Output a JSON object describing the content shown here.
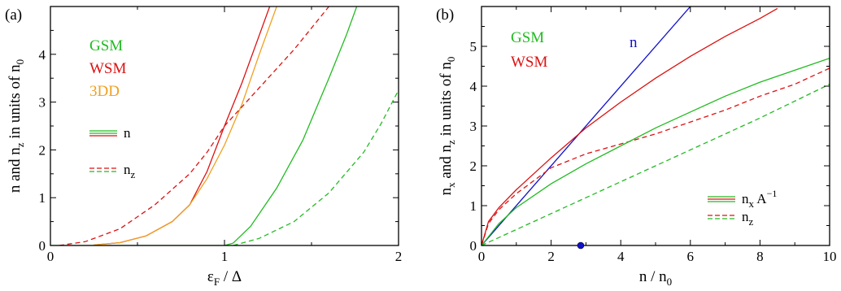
{
  "colors": {
    "green": "#22bb22",
    "red": "#dd1111",
    "orange": "#f0a020",
    "blue": "#1010cc"
  },
  "chart_data": [
    {
      "type": "line",
      "panel_label": "(a)",
      "xlabel_main": "ε",
      "xlabel_sub": "F",
      "xlabel_tail": " / Δ",
      "ylabel_main": "n and n",
      "ylabel_sub": "z",
      "ylabel_mid": " in units of n",
      "ylabel_sub2": "0",
      "xlim": [
        0,
        2
      ],
      "ylim": [
        0,
        5
      ],
      "xticks": [
        {
          "value": 0,
          "label": "0"
        },
        {
          "value": 1,
          "label": "1"
        },
        {
          "value": 2,
          "label": "2"
        }
      ],
      "yticks": [
        {
          "value": 0,
          "label": "0"
        },
        {
          "value": 1,
          "label": "1"
        },
        {
          "value": 2,
          "label": "2"
        },
        {
          "value": 3,
          "label": "3"
        },
        {
          "value": 4,
          "label": "4"
        }
      ],
      "legend_names": [
        {
          "text": "GSM",
          "color": "#22bb22"
        },
        {
          "text": "WSM",
          "color": "#dd1111"
        },
        {
          "text": "3DD",
          "color": "#f0a020"
        }
      ],
      "legend_keys": [
        {
          "text": "n",
          "sub": "",
          "style": "solid"
        },
        {
          "text": "n",
          "sub": "z",
          "style": "dashed"
        }
      ],
      "series": [
        {
          "color": "#dd1111",
          "dash": "none",
          "x": [
            0.25,
            0.4,
            0.55,
            0.7,
            0.8,
            0.9,
            1.0,
            1.1,
            1.2,
            1.26
          ],
          "y": [
            0.01,
            0.06,
            0.2,
            0.5,
            0.85,
            1.55,
            2.5,
            3.4,
            4.4,
            5.0
          ]
        },
        {
          "color": "#f0a020",
          "dash": "none",
          "x": [
            0.25,
            0.4,
            0.55,
            0.7,
            0.8,
            0.9,
            1.0,
            1.1,
            1.2,
            1.3
          ],
          "y": [
            0.01,
            0.06,
            0.2,
            0.5,
            0.85,
            1.4,
            2.1,
            2.95,
            4.0,
            5.0
          ]
        },
        {
          "color": "#dd1111",
          "dash": "6,4",
          "x": [
            0.05,
            0.2,
            0.4,
            0.6,
            0.8,
            0.9,
            1.0,
            1.2,
            1.4,
            1.6
          ],
          "y": [
            0.0,
            0.08,
            0.35,
            0.85,
            1.5,
            1.95,
            2.5,
            3.3,
            4.1,
            5.0
          ]
        },
        {
          "color": "#22bb22",
          "dash": "none",
          "x": [
            0.0,
            1.0,
            1.05,
            1.15,
            1.3,
            1.45,
            1.6,
            1.7,
            1.76
          ],
          "y": [
            0.0,
            0.0,
            0.05,
            0.4,
            1.2,
            2.2,
            3.5,
            4.4,
            5.0
          ]
        },
        {
          "color": "#22bb22",
          "dash": "6,4",
          "x": [
            1.05,
            1.2,
            1.4,
            1.6,
            1.8,
            1.9,
            2.0
          ],
          "y": [
            0.0,
            0.15,
            0.5,
            1.1,
            1.95,
            2.55,
            3.25
          ]
        }
      ]
    },
    {
      "type": "line",
      "panel_label": "(b)",
      "xlabel_main": "n / n",
      "xlabel_sub": "0",
      "ylabel_main": "n",
      "ylabel_sub": "x",
      "ylabel_mid": " and n",
      "ylabel_sub2": "z",
      "ylabel_tail": " in units of n",
      "ylabel_sub3": "0",
      "xlim": [
        0,
        10
      ],
      "ylim": [
        0,
        6
      ],
      "xticks": [
        {
          "value": 0,
          "label": "0"
        },
        {
          "value": 2,
          "label": "2"
        },
        {
          "value": 4,
          "label": "4"
        },
        {
          "value": 6,
          "label": "6"
        },
        {
          "value": 8,
          "label": "8"
        },
        {
          "value": 10,
          "label": "10"
        }
      ],
      "yticks": [
        {
          "value": 0,
          "label": "0"
        },
        {
          "value": 1,
          "label": "1"
        },
        {
          "value": 2,
          "label": "2"
        },
        {
          "value": 3,
          "label": "3"
        },
        {
          "value": 4,
          "label": "4"
        },
        {
          "value": 5,
          "label": "5"
        }
      ],
      "legend_names": [
        {
          "text": "GSM",
          "color": "#22bb22"
        },
        {
          "text": "WSM",
          "color": "#dd1111"
        }
      ],
      "line_label": {
        "text": "n",
        "color": "#1010cc",
        "x": 3.0,
        "y": 5.2
      },
      "legend_keys": [
        {
          "text": "n",
          "sub": "x",
          "extra": "A",
          "sup": "−1",
          "style": "solid"
        },
        {
          "text": "n",
          "sub": "z",
          "style": "dashed"
        }
      ],
      "marker": {
        "x": 2.85,
        "y": 0.0,
        "color": "#1010cc"
      },
      "series": [
        {
          "color": "#1010cc",
          "dash": "none",
          "x": [
            0,
            6
          ],
          "y": [
            0,
            6
          ]
        },
        {
          "color": "#dd1111",
          "dash": "none",
          "x": [
            0,
            0.2,
            0.5,
            1,
            2,
            3,
            4,
            5,
            6,
            7,
            8,
            8.5
          ],
          "y": [
            0,
            0.6,
            0.95,
            1.4,
            2.2,
            2.95,
            3.6,
            4.2,
            4.75,
            5.25,
            5.7,
            5.95
          ]
        },
        {
          "color": "#dd1111",
          "dash": "6,4",
          "x": [
            0,
            0.2,
            0.5,
            1,
            2,
            3,
            4,
            5,
            6,
            7,
            8,
            9,
            10
          ],
          "y": [
            0,
            0.55,
            0.9,
            1.3,
            1.95,
            2.3,
            2.55,
            2.8,
            3.1,
            3.4,
            3.75,
            4.05,
            4.45
          ]
        },
        {
          "color": "#22bb22",
          "dash": "none",
          "x": [
            0,
            0.5,
            1,
            2,
            3,
            4,
            5,
            6,
            7,
            8,
            9,
            10
          ],
          "y": [
            0,
            0.55,
            0.95,
            1.55,
            2.05,
            2.5,
            2.95,
            3.35,
            3.75,
            4.1,
            4.4,
            4.7
          ]
        },
        {
          "color": "#22bb22",
          "dash": "6,4",
          "x": [
            0,
            2,
            4,
            6,
            8,
            10
          ],
          "y": [
            0,
            0.8,
            1.6,
            2.4,
            3.2,
            4.05
          ]
        }
      ]
    }
  ]
}
